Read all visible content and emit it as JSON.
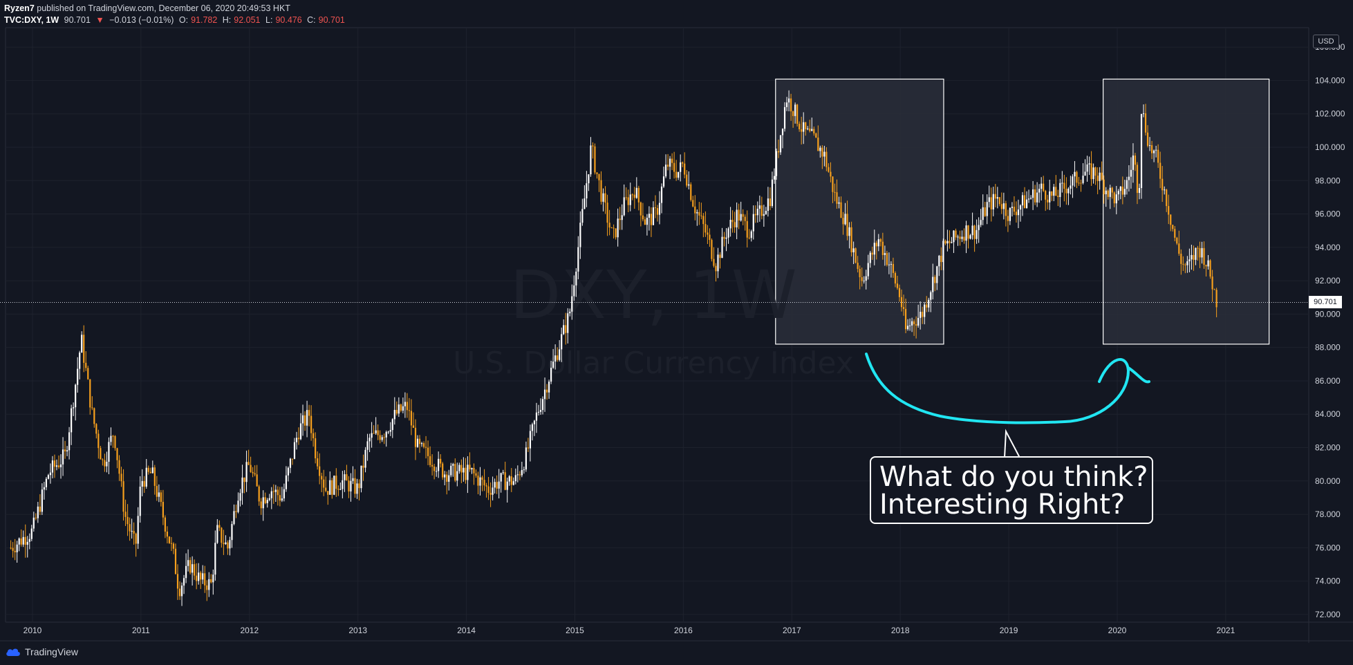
{
  "header": {
    "author": "Ryzen7",
    "published_text": "published on TradingView.com, December 06, 2020 20:49:53 HKT",
    "symbol": "TVC:DXY, 1W",
    "last": "90.701",
    "change_arrow": "▼",
    "change": "−0.013 (−0.01%)",
    "o_label": "O:",
    "o_value": "91.782",
    "h_label": "H:",
    "h_value": "92.051",
    "l_label": "L:",
    "l_value": "90.476",
    "c_label": "C:",
    "c_value": "90.701"
  },
  "watermark": {
    "symbol": "DXY, 1W",
    "name": "U.S. Dollar Currency Index"
  },
  "currency_badge": "USD",
  "price_tag": "90.701",
  "callout": {
    "line1": "What do you think?",
    "line2": "Interesting Right?"
  },
  "footer": {
    "brand": "TradingView"
  },
  "colors": {
    "background": "#131722",
    "up_candle": "#ffffff",
    "down_candle": "#f7a01d",
    "annotation": "#21e6f2",
    "box_fill": "#2a2e39"
  },
  "chart_data": {
    "type": "candlestick",
    "title": "DXY, 1W",
    "subtitle": "U.S. Dollar Currency Index",
    "x": [
      "2010",
      "2011",
      "2012",
      "2013",
      "2014",
      "2015",
      "2016",
      "2017",
      "2018",
      "2019",
      "2020",
      "2021"
    ],
    "ylim": [
      71.5,
      107
    ],
    "yticks": [
      72,
      74,
      76,
      78,
      80,
      82,
      84,
      86,
      88,
      90,
      92,
      94,
      96,
      98,
      100,
      102,
      104,
      106
    ],
    "ytick_labels": [
      "72.000",
      "74.000",
      "76.000",
      "78.000",
      "80.000",
      "82.000",
      "84.000",
      "86.000",
      "88.000",
      "90.000",
      "92.000",
      "94.000",
      "96.000",
      "98.000",
      "100.000",
      "102.000",
      "104.000",
      "106.000"
    ],
    "grid": true,
    "last_price": 90.701,
    "series": [
      {
        "values": [
          [
            2009.8,
            76
          ],
          [
            2010.0,
            77
          ],
          [
            2010.15,
            80.5
          ],
          [
            2010.3,
            81.5
          ],
          [
            2010.4,
            86
          ],
          [
            2010.45,
            88.5
          ],
          [
            2010.55,
            84
          ],
          [
            2010.65,
            81
          ],
          [
            2010.75,
            83
          ],
          [
            2010.85,
            78
          ],
          [
            2010.95,
            76
          ],
          [
            2011.0,
            80
          ],
          [
            2011.1,
            80.5
          ],
          [
            2011.2,
            78
          ],
          [
            2011.3,
            75.5
          ],
          [
            2011.35,
            73.5
          ],
          [
            2011.45,
            75
          ],
          [
            2011.55,
            74
          ],
          [
            2011.65,
            73.8
          ],
          [
            2011.7,
            77
          ],
          [
            2011.8,
            76
          ],
          [
            2011.9,
            79.5
          ],
          [
            2012.0,
            81
          ],
          [
            2012.1,
            78.8
          ],
          [
            2012.2,
            79.5
          ],
          [
            2012.3,
            79
          ],
          [
            2012.45,
            83
          ],
          [
            2012.55,
            84
          ],
          [
            2012.6,
            82
          ],
          [
            2012.7,
            79.5
          ],
          [
            2012.85,
            80
          ],
          [
            2013.0,
            79.5
          ],
          [
            2013.1,
            82.5
          ],
          [
            2013.25,
            83
          ],
          [
            2013.35,
            84
          ],
          [
            2013.45,
            84.5
          ],
          [
            2013.55,
            82
          ],
          [
            2013.65,
            81.5
          ],
          [
            2013.8,
            80.5
          ],
          [
            2013.9,
            80.5
          ],
          [
            2014.05,
            80.5
          ],
          [
            2014.2,
            79.5
          ],
          [
            2014.3,
            80
          ],
          [
            2014.45,
            80
          ],
          [
            2014.55,
            81.5
          ],
          [
            2014.65,
            84
          ],
          [
            2014.75,
            86
          ],
          [
            2014.85,
            88
          ],
          [
            2014.95,
            90
          ],
          [
            2015.05,
            95
          ],
          [
            2015.15,
            100
          ],
          [
            2015.25,
            97
          ],
          [
            2015.35,
            94.5
          ],
          [
            2015.45,
            96.5
          ],
          [
            2015.55,
            97.5
          ],
          [
            2015.65,
            95.5
          ],
          [
            2015.75,
            96
          ],
          [
            2015.85,
            99
          ],
          [
            2015.95,
            98.5
          ],
          [
            2016.0,
            99
          ],
          [
            2016.1,
            96.5
          ],
          [
            2016.2,
            95
          ],
          [
            2016.3,
            93
          ],
          [
            2016.4,
            95
          ],
          [
            2016.5,
            96
          ],
          [
            2016.6,
            95
          ],
          [
            2016.7,
            96
          ],
          [
            2016.8,
            97
          ],
          [
            2016.85,
            99
          ],
          [
            2016.9,
            101
          ],
          [
            2016.95,
            103
          ],
          [
            2017.0,
            102.5
          ],
          [
            2017.1,
            101
          ],
          [
            2017.2,
            100.5
          ],
          [
            2017.3,
            99.5
          ],
          [
            2017.4,
            97
          ],
          [
            2017.5,
            95.5
          ],
          [
            2017.6,
            93
          ],
          [
            2017.65,
            92
          ],
          [
            2017.7,
            93
          ],
          [
            2017.8,
            94.5
          ],
          [
            2017.9,
            93
          ],
          [
            2018.0,
            91
          ],
          [
            2018.05,
            89
          ],
          [
            2018.1,
            89.5
          ],
          [
            2018.2,
            90
          ],
          [
            2018.3,
            92
          ],
          [
            2018.4,
            94
          ],
          [
            2018.5,
            94.5
          ],
          [
            2018.6,
            95
          ],
          [
            2018.7,
            95
          ],
          [
            2018.8,
            96.5
          ],
          [
            2018.9,
            97
          ],
          [
            2019.0,
            96
          ],
          [
            2019.1,
            96.5
          ],
          [
            2019.2,
            97
          ],
          [
            2019.3,
            97.5
          ],
          [
            2019.4,
            97
          ],
          [
            2019.5,
            97.5
          ],
          [
            2019.6,
            98
          ],
          [
            2019.7,
            98.5
          ],
          [
            2019.8,
            98.5
          ],
          [
            2019.9,
            97.5
          ],
          [
            2020.0,
            96.8
          ],
          [
            2020.1,
            98
          ],
          [
            2020.15,
            99.5
          ],
          [
            2020.2,
            97
          ],
          [
            2020.22,
            102.5
          ],
          [
            2020.3,
            100
          ],
          [
            2020.35,
            99.5
          ],
          [
            2020.45,
            97
          ],
          [
            2020.55,
            94
          ],
          [
            2020.6,
            93
          ],
          [
            2020.65,
            92.8
          ],
          [
            2020.75,
            94
          ],
          [
            2020.8,
            93.5
          ],
          [
            2020.85,
            92.5
          ],
          [
            2020.92,
            90.7
          ]
        ]
      }
    ],
    "highlight_ranges": [
      [
        2016.85,
        2018.4
      ],
      [
        2019.87,
        2021.4
      ]
    ]
  }
}
